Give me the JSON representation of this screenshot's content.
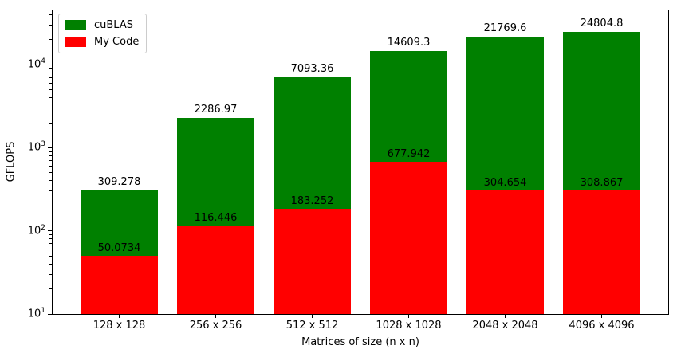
{
  "chart_data": {
    "type": "bar",
    "title": "",
    "xlabel": "Matrices of size (n x n)",
    "ylabel": "GFLOPS",
    "categories": [
      "128 x 128",
      "256 x 256",
      "512 x 512",
      "1028 x 1028",
      "2048 x 2048",
      "4096 x 4096"
    ],
    "series": [
      {
        "name": "cuBLAS",
        "color": "#008000",
        "values": [
          309.278,
          2286.97,
          7093.36,
          14609.3,
          21769.6,
          24804.8
        ]
      },
      {
        "name": "My Code",
        "color": "#ff0000",
        "values": [
          50.0734,
          116.446,
          183.252,
          677.942,
          304.654,
          308.867
        ]
      }
    ],
    "bar_style": "overlaid",
    "bar_width_fraction": 0.8,
    "yscale": "log",
    "ylim": [
      10,
      45000
    ],
    "y_major_tick_exponents": [
      1,
      2,
      3,
      4
    ],
    "grid": false,
    "legend_position": "upper left",
    "spine_color": "#000000",
    "background_color": "#ffffff",
    "label_color": "#000000"
  }
}
